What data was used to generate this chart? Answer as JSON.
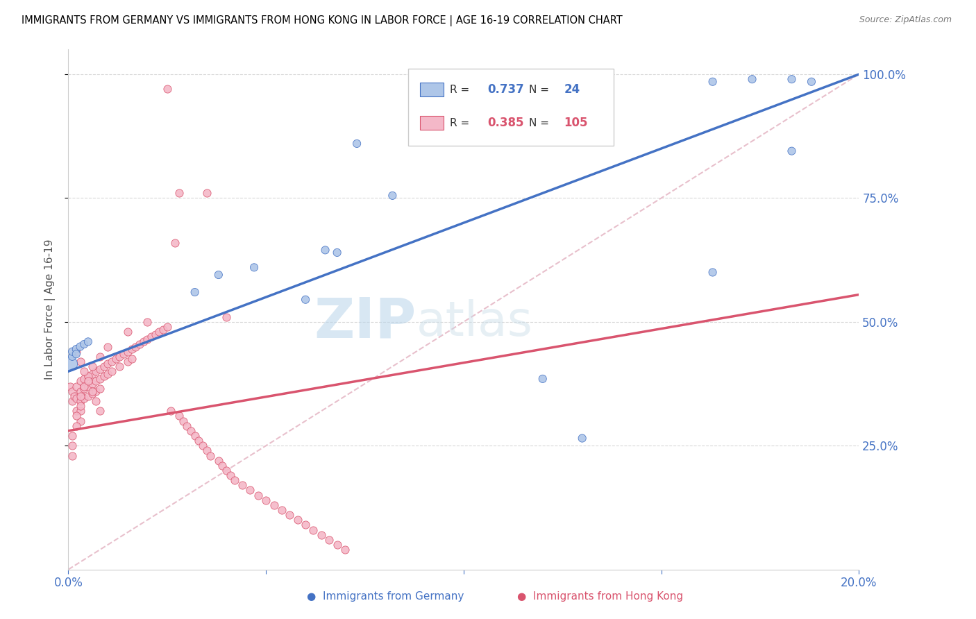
{
  "title": "IMMIGRANTS FROM GERMANY VS IMMIGRANTS FROM HONG KONG IN LABOR FORCE | AGE 16-19 CORRELATION CHART",
  "source": "Source: ZipAtlas.com",
  "ylabel_left": "In Labor Force | Age 16-19",
  "legend_germany": "Immigrants from Germany",
  "legend_hongkong": "Immigrants from Hong Kong",
  "R_germany": 0.737,
  "N_germany": 24,
  "R_hongkong": 0.385,
  "N_hongkong": 105,
  "color_germany_fill": "#aec6e8",
  "color_germany_line": "#4472c4",
  "color_hongkong_fill": "#f4b8c8",
  "color_hongkong_line": "#d9546e",
  "color_right_axis": "#4472c4",
  "color_bottom_axis": "#4472c4",
  "watermark_color": "#cce0f0",
  "xmin": 0.0,
  "xmax": 0.2,
  "ymin": 0.0,
  "ymax": 1.05,
  "ytick_vals": [
    0.25,
    0.5,
    0.75,
    1.0
  ],
  "ytick_labels_right": [
    "25.0%",
    "50.0%",
    "75.0%",
    "100.0%"
  ],
  "xtick_vals": [
    0.0,
    0.05,
    0.1,
    0.15,
    0.2
  ],
  "xtick_labels": [
    "0.0%",
    "",
    "",
    "",
    "20.0%"
  ],
  "germany_line_y0": 0.4,
  "germany_line_y1": 1.0,
  "hongkong_line_y0": 0.28,
  "hongkong_line_y1": 0.555,
  "diag_line_color": "#e8c0cc",
  "germany_x": [
    0.0005,
    0.001,
    0.001,
    0.002,
    0.002,
    0.003,
    0.004,
    0.005,
    0.032,
    0.038,
    0.047,
    0.06,
    0.065,
    0.068,
    0.073,
    0.082,
    0.12,
    0.13,
    0.163,
    0.173,
    0.183,
    0.188,
    0.183,
    0.163
  ],
  "germany_y": [
    0.415,
    0.43,
    0.44,
    0.445,
    0.435,
    0.45,
    0.455,
    0.46,
    0.56,
    0.595,
    0.61,
    0.545,
    0.645,
    0.64,
    0.86,
    0.755,
    0.385,
    0.265,
    0.985,
    0.99,
    0.99,
    0.985,
    0.845,
    0.6
  ],
  "germany_sizes_large": [
    0,
    1,
    2,
    3
  ],
  "hk_x_clusters": [
    [
      0.0005,
      0.001,
      0.001,
      0.0015,
      0.002,
      0.002,
      0.002,
      0.003,
      0.003,
      0.003,
      0.003,
      0.003,
      0.004,
      0.004,
      0.004,
      0.005,
      0.005,
      0.005,
      0.006,
      0.006,
      0.006,
      0.007,
      0.007,
      0.007,
      0.008,
      0.008,
      0.008,
      0.009,
      0.009,
      0.01,
      0.01,
      0.011,
      0.011,
      0.012,
      0.013,
      0.013,
      0.014,
      0.015,
      0.015,
      0.016,
      0.016,
      0.017,
      0.018,
      0.019,
      0.02,
      0.021,
      0.022,
      0.023,
      0.024,
      0.025,
      0.026,
      0.027,
      0.028,
      0.029,
      0.03,
      0.031,
      0.032,
      0.033,
      0.034,
      0.035,
      0.036,
      0.038,
      0.039,
      0.04,
      0.041,
      0.042,
      0.044,
      0.046,
      0.048,
      0.05,
      0.052,
      0.054,
      0.056,
      0.058,
      0.06,
      0.062,
      0.064,
      0.066,
      0.068,
      0.07,
      0.025,
      0.028,
      0.035,
      0.04,
      0.02,
      0.015,
      0.01,
      0.008,
      0.006,
      0.005,
      0.004,
      0.003,
      0.003,
      0.002,
      0.002,
      0.001,
      0.001,
      0.001,
      0.002,
      0.003,
      0.004,
      0.005,
      0.006,
      0.007,
      0.008
    ]
  ],
  "hk_y_values": [
    0.37,
    0.36,
    0.34,
    0.35,
    0.37,
    0.345,
    0.32,
    0.38,
    0.36,
    0.34,
    0.32,
    0.3,
    0.385,
    0.365,
    0.345,
    0.39,
    0.37,
    0.35,
    0.395,
    0.375,
    0.355,
    0.4,
    0.38,
    0.36,
    0.405,
    0.385,
    0.365,
    0.41,
    0.39,
    0.415,
    0.395,
    0.42,
    0.4,
    0.425,
    0.43,
    0.41,
    0.435,
    0.44,
    0.42,
    0.445,
    0.425,
    0.45,
    0.455,
    0.46,
    0.465,
    0.47,
    0.475,
    0.48,
    0.485,
    0.49,
    0.32,
    0.66,
    0.31,
    0.3,
    0.29,
    0.28,
    0.27,
    0.26,
    0.25,
    0.24,
    0.23,
    0.22,
    0.21,
    0.2,
    0.19,
    0.18,
    0.17,
    0.16,
    0.15,
    0.14,
    0.13,
    0.12,
    0.11,
    0.1,
    0.09,
    0.08,
    0.07,
    0.06,
    0.05,
    0.04,
    0.97,
    0.76,
    0.76,
    0.51,
    0.5,
    0.48,
    0.45,
    0.43,
    0.41,
    0.39,
    0.37,
    0.35,
    0.33,
    0.31,
    0.29,
    0.27,
    0.25,
    0.23,
    0.44,
    0.42,
    0.4,
    0.38,
    0.36,
    0.34,
    0.32
  ]
}
